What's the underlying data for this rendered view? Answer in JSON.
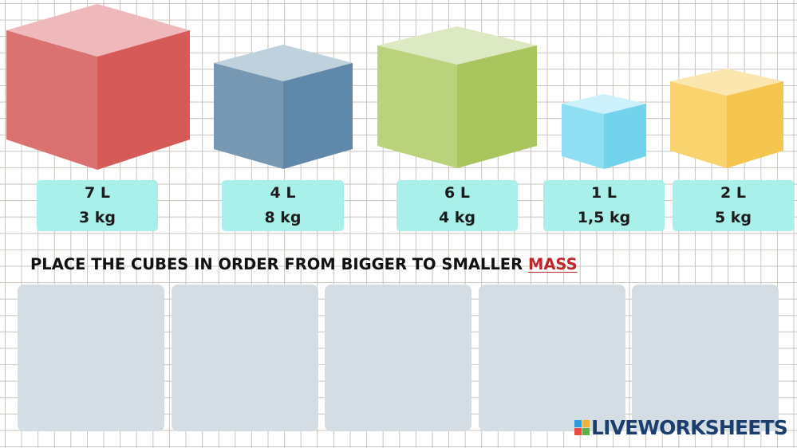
{
  "cubes": [
    {
      "volume": "7 L",
      "mass": "3 kg",
      "color": "#d9575a"
    },
    {
      "volume": "4 L",
      "mass": "8 kg",
      "color": "#6d93b4"
    },
    {
      "volume": "6 L",
      "mass": "4 kg",
      "color": "#b0cb6a"
    },
    {
      "volume": "1 L",
      "mass": "1,5 kg",
      "color": "#7fd8ef"
    },
    {
      "volume": "2 L",
      "mass": "5 kg",
      "color": "#f6c95a"
    }
  ],
  "instruction": {
    "text": "PLACE THE CUBES IN ORDER FROM BIGGER TO SMALLER ",
    "emphasis": "MASS"
  },
  "slots": [
    "",
    "",
    "",
    "",
    ""
  ],
  "brand": {
    "name": "LIVEWORKSHEETS"
  }
}
